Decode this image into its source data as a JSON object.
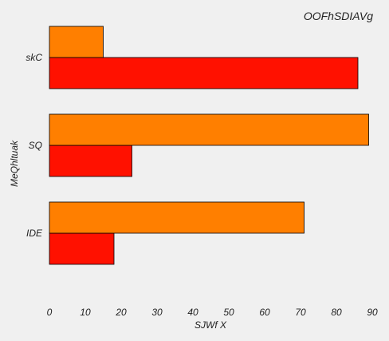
{
  "chart_data": {
    "type": "bar",
    "orientation": "horizontal",
    "title": "OOFhSDIAVg",
    "xlabel": "SJWf X",
    "ylabel": "MeQhltuak",
    "categories": [
      "IDE",
      "SQ",
      "skC"
    ],
    "series": [
      {
        "color": "#ff1100",
        "values": [
          18,
          23,
          86
        ]
      },
      {
        "color": "#ff7f00",
        "values": [
          71,
          89,
          15
        ]
      }
    ],
    "xlim": [
      0,
      90
    ],
    "xticks": [
      0,
      10,
      20,
      30,
      40,
      50,
      60,
      70,
      80,
      90
    ],
    "grid": false,
    "legend": "none"
  }
}
